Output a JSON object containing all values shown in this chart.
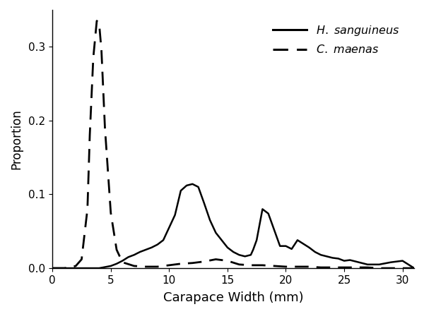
{
  "title": "",
  "xlabel": "Carapace Width (mm)",
  "ylabel": "Proportion",
  "xlim": [
    0,
    31
  ],
  "ylim": [
    0,
    0.35
  ],
  "yticks": [
    0.0,
    0.1,
    0.2,
    0.3
  ],
  "xticks": [
    0,
    5,
    10,
    15,
    20,
    25,
    30
  ],
  "line_color": "#000000",
  "background_color": "#ffffff",
  "h_sanguineus_x": [
    0,
    1,
    2,
    3,
    4,
    5,
    5.5,
    6,
    6.5,
    7,
    7.5,
    8,
    8.5,
    9,
    9.5,
    10,
    10.5,
    11,
    11.5,
    12,
    12.5,
    13,
    13.5,
    14,
    14.5,
    15,
    15.5,
    16,
    16.5,
    17,
    17.2,
    17.5,
    18,
    18.5,
    19,
    19.5,
    20,
    20.5,
    21,
    21.5,
    22,
    22.5,
    23,
    23.5,
    24,
    24.5,
    25,
    25.5,
    26,
    26.5,
    27,
    28,
    29,
    30,
    31
  ],
  "h_sanguineus_y": [
    0,
    0,
    0,
    0,
    0,
    0.003,
    0.006,
    0.01,
    0.015,
    0.018,
    0.022,
    0.025,
    0.028,
    0.032,
    0.038,
    0.055,
    0.072,
    0.105,
    0.112,
    0.114,
    0.11,
    0.088,
    0.065,
    0.048,
    0.038,
    0.028,
    0.022,
    0.018,
    0.016,
    0.018,
    0.025,
    0.038,
    0.08,
    0.074,
    0.052,
    0.03,
    0.03,
    0.026,
    0.038,
    0.033,
    0.028,
    0.022,
    0.018,
    0.016,
    0.014,
    0.013,
    0.01,
    0.011,
    0.009,
    0.007,
    0.005,
    0.005,
    0.008,
    0.01,
    0
  ],
  "c_maenas_x": [
    0,
    1,
    1.5,
    2,
    2.5,
    3,
    3.2,
    3.5,
    3.8,
    4,
    4.2,
    4.5,
    5,
    5.5,
    6,
    7,
    8,
    9,
    10,
    11,
    12,
    13,
    14,
    15,
    16,
    17,
    18,
    19,
    20,
    21,
    22,
    23,
    24,
    25,
    26,
    27,
    28,
    29,
    30,
    31
  ],
  "c_maenas_y": [
    0,
    0,
    0.001,
    0.003,
    0.012,
    0.08,
    0.18,
    0.285,
    0.335,
    0.332,
    0.295,
    0.19,
    0.075,
    0.025,
    0.008,
    0.003,
    0.002,
    0.002,
    0.004,
    0.006,
    0.007,
    0.009,
    0.012,
    0.01,
    0.005,
    0.004,
    0.004,
    0.003,
    0.002,
    0.002,
    0.002,
    0.001,
    0.001,
    0.001,
    0.001,
    0.001,
    0,
    0,
    0,
    0
  ]
}
